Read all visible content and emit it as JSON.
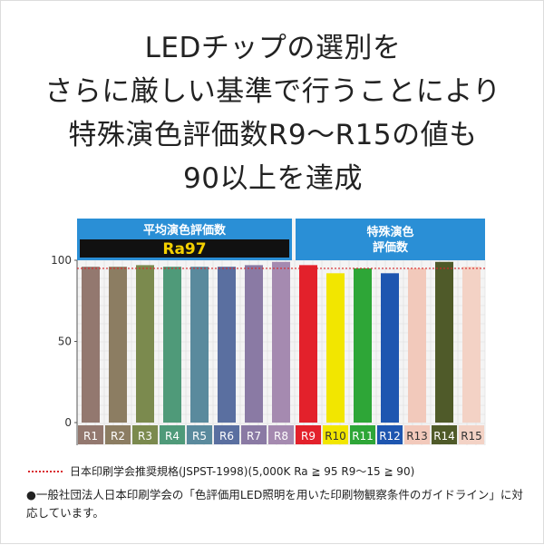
{
  "headline": [
    "LEDチップの選別を",
    "さらに厳しい基準で行うことにより",
    "特殊演色評価数R9〜R15の値も",
    "90以上を達成"
  ],
  "chart_data": {
    "type": "bar",
    "groups": [
      {
        "title": "平均演色評価数",
        "badge": "Ra97",
        "color": "#2a8fd6"
      },
      {
        "title_lines": [
          "特殊演色",
          "評価数"
        ],
        "color": "#2a8fd6"
      }
    ],
    "categories": [
      "R1",
      "R2",
      "R3",
      "R4",
      "R5",
      "R6",
      "R7",
      "R8",
      "R9",
      "R10",
      "R11",
      "R12",
      "R13",
      "R14",
      "R15"
    ],
    "values": [
      96,
      96,
      97,
      96,
      96,
      96,
      97,
      99,
      97,
      92,
      95,
      92,
      95,
      99,
      96
    ],
    "colors": [
      "#93786f",
      "#8c7d62",
      "#7b8a4e",
      "#4f9a79",
      "#5a8a9d",
      "#5a6fa0",
      "#8a7aa4",
      "#a58ab0",
      "#e3212b",
      "#f2e600",
      "#2ea637",
      "#1e56b0",
      "#f2c9bb",
      "#4f5a29",
      "#f3d2c5"
    ],
    "label_colors": [
      "#fff",
      "#fff",
      "#fff",
      "#fff",
      "#fff",
      "#fff",
      "#fff",
      "#fff",
      "#fff",
      "#333",
      "#fff",
      "#fff",
      "#333",
      "#fff",
      "#333"
    ],
    "yticks": [
      0,
      50,
      100
    ],
    "ylim": [
      0,
      100
    ],
    "reference_line": 95,
    "legend": "日本印刷学会推奨規格(JSPST-1998)(5,000K Ra ≧ 95 R9〜15 ≧ 90)"
  },
  "note": "●一般社団法人日本印刷学会の「色評価用LED照明を用いた印刷物観察条件のガイドライン」に対応しています。"
}
